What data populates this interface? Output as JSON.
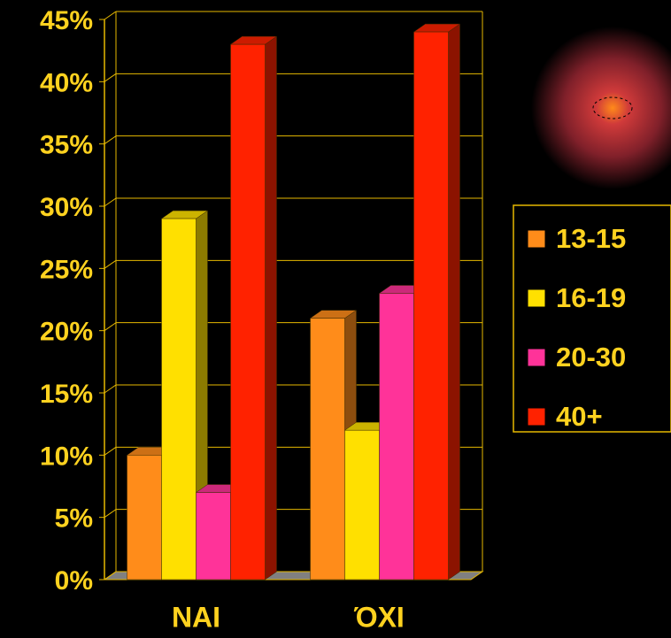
{
  "chart_data": {
    "type": "bar3d",
    "categories": [
      "NAI",
      "ΌΧΙ"
    ],
    "series": [
      {
        "name": "13-15",
        "color": "#ff8c1a",
        "values": [
          10,
          21
        ]
      },
      {
        "name": "16-19",
        "color": "#ffe000",
        "values": [
          29,
          12
        ]
      },
      {
        "name": "20-30",
        "color": "#ff3399",
        "values": [
          7,
          23
        ]
      },
      {
        "name": "40+",
        "color": "#ff2200",
        "values": [
          43,
          44
        ]
      }
    ],
    "ylim": [
      0,
      45
    ],
    "yticks": [
      {
        "value": 0,
        "label": "0%"
      },
      {
        "value": 5,
        "label": "5%"
      },
      {
        "value": 10,
        "label": "10%"
      },
      {
        "value": 15,
        "label": "15%"
      },
      {
        "value": 20,
        "label": "20%"
      },
      {
        "value": 25,
        "label": "25%"
      },
      {
        "value": 30,
        "label": "30%"
      },
      {
        "value": 35,
        "label": "35%"
      },
      {
        "value": 40,
        "label": "40%"
      },
      {
        "value": 45,
        "label": "45%"
      }
    ],
    "grid": true,
    "grid_color": "#e6b800"
  }
}
